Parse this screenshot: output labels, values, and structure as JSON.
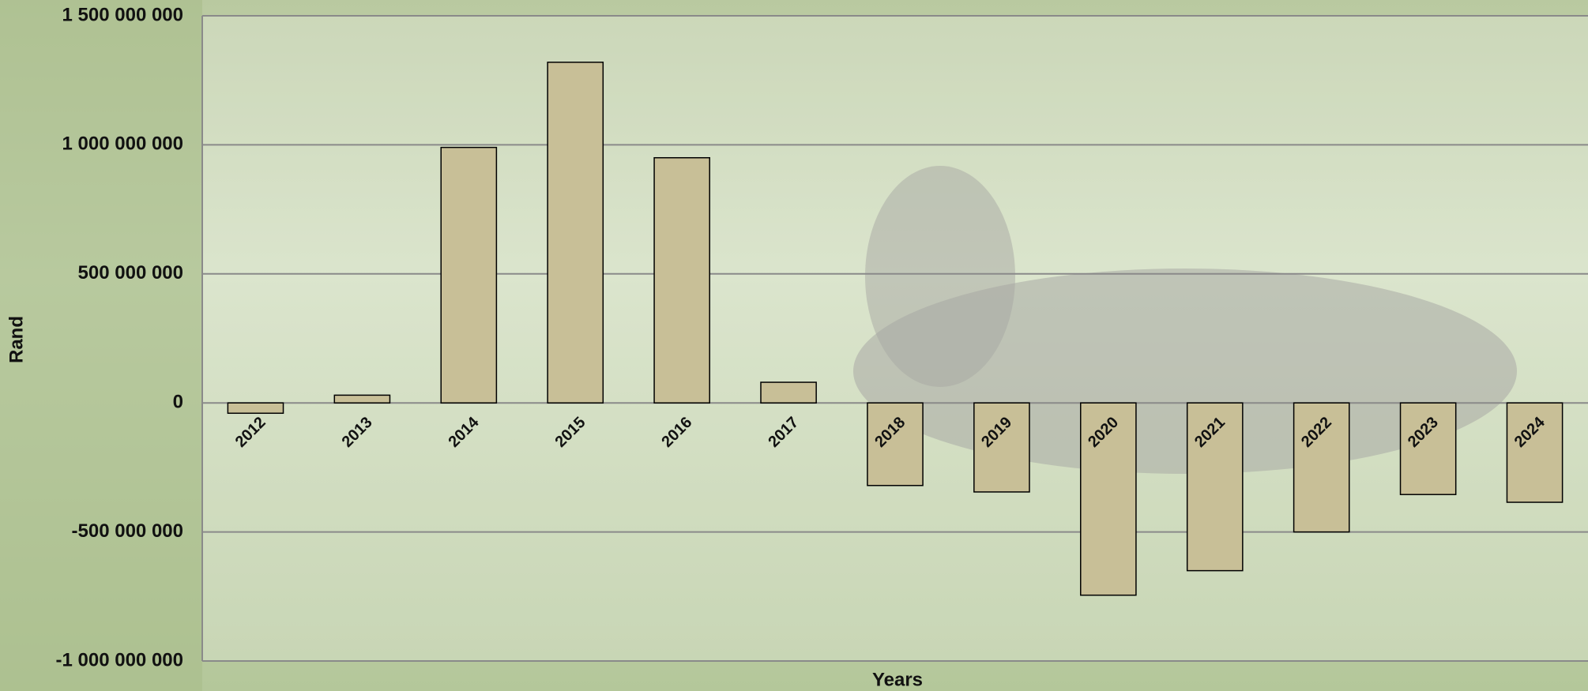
{
  "chart_data": {
    "type": "bar",
    "y_label": "Rand",
    "x_label": "Years",
    "categories": [
      "2012",
      "2013",
      "2014",
      "2015",
      "2016",
      "2017",
      "2018",
      "2019",
      "2020",
      "2021",
      "2022",
      "2023",
      "2024"
    ],
    "values": [
      -40000000,
      30000000,
      990000000,
      1320000000,
      950000000,
      80000000,
      -320000000,
      -345000000,
      -745000000,
      -650000000,
      -500000000,
      -355000000,
      -385000000
    ],
    "color": "#c8bf97",
    "ylim": [
      -1000000000,
      1500000000
    ],
    "yticks": [
      {
        "value": -1000000000,
        "label": "-1 000 000 000"
      },
      {
        "value": -500000000,
        "label": "-500 000 000"
      },
      0,
      {
        "value": 500000000,
        "label": "500 000 000"
      },
      {
        "value": 1000000000,
        "label": "1 000 000 000"
      },
      {
        "value": 1500000000,
        "label": "1 500 000 000"
      }
    ],
    "grid": true
  }
}
